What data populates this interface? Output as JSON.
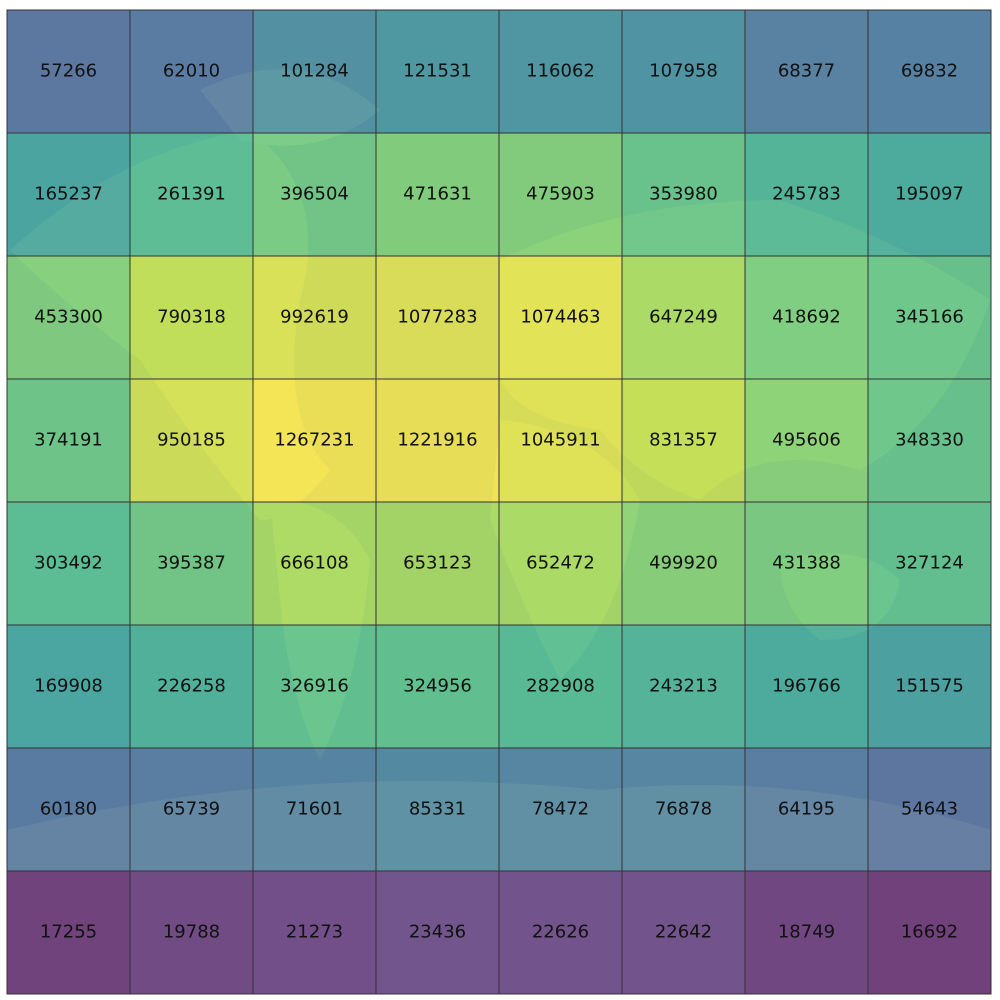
{
  "grid": {
    "rows": [
      [
        57266,
        62010,
        101284,
        121531,
        116062,
        107958,
        68377,
        69832
      ],
      [
        165237,
        261391,
        396504,
        471631,
        475903,
        353980,
        245783,
        195097
      ],
      [
        453300,
        790318,
        992619,
        1077283,
        1074463,
        647249,
        418692,
        345166
      ],
      [
        374191,
        950185,
        1267231,
        1221916,
        1045911,
        831357,
        495606,
        348330
      ],
      [
        303492,
        395387,
        666108,
        653123,
        652472,
        499920,
        431388,
        327124
      ],
      [
        169908,
        226258,
        326916,
        324956,
        282908,
        243213,
        196766,
        151575
      ],
      [
        60180,
        65739,
        71601,
        85331,
        78472,
        76878,
        64195,
        54643
      ],
      [
        17255,
        19788,
        21273,
        23436,
        22626,
        22642,
        18749,
        16692
      ]
    ]
  }
}
